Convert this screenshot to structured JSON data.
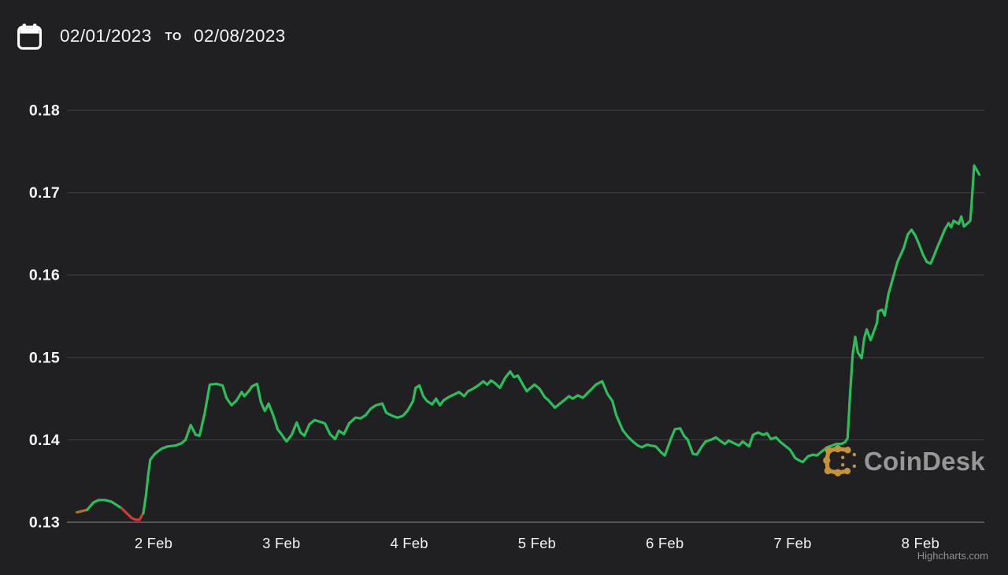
{
  "header": {
    "date_from": "02/01/2023",
    "separator": "TO",
    "date_to": "02/08/2023"
  },
  "watermark": {
    "brand": "CoinDesk",
    "icon_color": "#c4923a",
    "text_color": "#979797"
  },
  "credits": {
    "label": "Highcharts.com"
  },
  "chart_data": {
    "type": "line",
    "title": "",
    "xlabel": "",
    "ylabel": "",
    "x_axis": {
      "t_definition": "days since 2023-02-01 00:00",
      "min": 0.35,
      "max": 7.52,
      "ticks": [
        {
          "t": 1,
          "label": "2 Feb"
        },
        {
          "t": 2,
          "label": "3 Feb"
        },
        {
          "t": 3,
          "label": "4 Feb"
        },
        {
          "t": 4,
          "label": "5 Feb"
        },
        {
          "t": 5,
          "label": "6 Feb"
        },
        {
          "t": 6,
          "label": "7 Feb"
        },
        {
          "t": 7,
          "label": "8 Feb"
        }
      ]
    },
    "y_axis": {
      "min": 0.13,
      "max": 0.1815,
      "ticks": [
        0.13,
        0.14,
        0.15,
        0.16,
        0.17,
        0.18
      ],
      "tick_labels": [
        "0.13",
        "0.14",
        "0.15",
        "0.16",
        "0.17",
        "0.18"
      ]
    },
    "grid": {
      "on": true,
      "color": "#3a3a3d",
      "axis_line_color": "#56565a"
    },
    "legend": {
      "position": "none"
    },
    "series": {
      "segments": [
        {
          "color": "#b07030",
          "points": [
            [
              0.4,
              0.1312
            ],
            [
              0.45,
              0.1314
            ],
            [
              0.48,
              0.1315
            ]
          ]
        },
        {
          "color": "#2cbe5a",
          "points": [
            [
              0.48,
              0.1315
            ],
            [
              0.53,
              0.1324
            ],
            [
              0.57,
              0.1327
            ],
            [
              0.62,
              0.1327
            ],
            [
              0.67,
              0.1325
            ],
            [
              0.71,
              0.1321
            ],
            [
              0.75,
              0.1317
            ]
          ]
        },
        {
          "color": "#d23a30",
          "points": [
            [
              0.75,
              0.1317
            ],
            [
              0.79,
              0.1311
            ],
            [
              0.83,
              0.1305
            ],
            [
              0.86,
              0.1303
            ],
            [
              0.89,
              0.1303
            ],
            [
              0.92,
              0.1311
            ]
          ]
        },
        {
          "color": "#2cbe5a",
          "points": [
            [
              0.92,
              0.1311
            ],
            [
              0.94,
              0.1332
            ],
            [
              0.96,
              0.136
            ],
            [
              0.975,
              0.1376
            ],
            [
              1.01,
              0.1383
            ],
            [
              1.06,
              0.1389
            ],
            [
              1.11,
              0.1392
            ],
            [
              1.17,
              0.1393
            ],
            [
              1.22,
              0.1396
            ],
            [
              1.25,
              0.14
            ],
            [
              1.29,
              0.1418
            ],
            [
              1.33,
              0.1406
            ],
            [
              1.36,
              0.1405
            ],
            [
              1.4,
              0.1432
            ],
            [
              1.44,
              0.1467
            ],
            [
              1.49,
              0.1468
            ],
            [
              1.54,
              0.1466
            ],
            [
              1.57,
              0.1451
            ],
            [
              1.61,
              0.1442
            ],
            [
              1.65,
              0.1448
            ],
            [
              1.69,
              0.1458
            ],
            [
              1.71,
              0.1453
            ],
            [
              1.75,
              0.146
            ],
            [
              1.77,
              0.1465
            ],
            [
              1.81,
              0.1468
            ],
            [
              1.84,
              0.1446
            ],
            [
              1.87,
              0.1435
            ],
            [
              1.9,
              0.1444
            ],
            [
              1.94,
              0.1428
            ],
            [
              1.97,
              0.1413
            ],
            [
              2.0,
              0.1407
            ],
            [
              2.04,
              0.1398
            ],
            [
              2.08,
              0.1406
            ],
            [
              2.12,
              0.1421
            ],
            [
              2.15,
              0.1409
            ],
            [
              2.18,
              0.1405
            ],
            [
              2.22,
              0.1419
            ],
            [
              2.26,
              0.1424
            ],
            [
              2.3,
              0.1422
            ],
            [
              2.34,
              0.142
            ],
            [
              2.38,
              0.1407
            ],
            [
              2.42,
              0.1401
            ],
            [
              2.45,
              0.1411
            ],
            [
              2.49,
              0.1407
            ],
            [
              2.53,
              0.142
            ],
            [
              2.58,
              0.1427
            ],
            [
              2.62,
              0.1426
            ],
            [
              2.66,
              0.143
            ],
            [
              2.7,
              0.1438
            ],
            [
              2.74,
              0.1442
            ],
            [
              2.79,
              0.1444
            ],
            [
              2.82,
              0.1433
            ],
            [
              2.87,
              0.1429
            ],
            [
              2.91,
              0.1427
            ],
            [
              2.95,
              0.1429
            ],
            [
              2.99,
              0.1436
            ],
            [
              3.03,
              0.1447
            ],
            [
              3.05,
              0.1463
            ],
            [
              3.08,
              0.1466
            ],
            [
              3.11,
              0.1453
            ],
            [
              3.14,
              0.1447
            ],
            [
              3.18,
              0.1443
            ],
            [
              3.21,
              0.145
            ],
            [
              3.24,
              0.1442
            ],
            [
              3.27,
              0.1448
            ],
            [
              3.31,
              0.1452
            ],
            [
              3.35,
              0.1455
            ],
            [
              3.39,
              0.1458
            ],
            [
              3.43,
              0.1453
            ],
            [
              3.46,
              0.1459
            ],
            [
              3.5,
              0.1462
            ],
            [
              3.54,
              0.1466
            ],
            [
              3.58,
              0.1471
            ],
            [
              3.61,
              0.1467
            ],
            [
              3.64,
              0.1472
            ],
            [
              3.67,
              0.1469
            ],
            [
              3.71,
              0.1463
            ],
            [
              3.75,
              0.1475
            ],
            [
              3.79,
              0.1483
            ],
            [
              3.82,
              0.1476
            ],
            [
              3.85,
              0.1478
            ],
            [
              3.89,
              0.1467
            ],
            [
              3.92,
              0.1459
            ],
            [
              3.95,
              0.1463
            ],
            [
              3.98,
              0.1467
            ],
            [
              4.02,
              0.1462
            ],
            [
              4.06,
              0.1452
            ],
            [
              4.09,
              0.1448
            ],
            [
              4.14,
              0.1439
            ],
            [
              4.18,
              0.1444
            ],
            [
              4.22,
              0.1449
            ],
            [
              4.25,
              0.1453
            ],
            [
              4.28,
              0.145
            ],
            [
              4.32,
              0.1454
            ],
            [
              4.36,
              0.1451
            ],
            [
              4.39,
              0.1456
            ],
            [
              4.43,
              0.1462
            ],
            [
              4.46,
              0.1467
            ],
            [
              4.51,
              0.1471
            ],
            [
              4.55,
              0.1456
            ],
            [
              4.59,
              0.1447
            ],
            [
              4.62,
              0.143
            ],
            [
              4.67,
              0.1412
            ],
            [
              4.71,
              0.1404
            ],
            [
              4.75,
              0.1398
            ],
            [
              4.79,
              0.1393
            ],
            [
              4.82,
              0.1391
            ],
            [
              4.86,
              0.1394
            ],
            [
              4.89,
              0.1393
            ],
            [
              4.93,
              0.1392
            ],
            [
              4.97,
              0.1385
            ],
            [
              5.0,
              0.1381
            ],
            [
              5.05,
              0.1402
            ],
            [
              5.08,
              0.1413
            ],
            [
              5.12,
              0.1414
            ],
            [
              5.15,
              0.1405
            ],
            [
              5.18,
              0.14
            ],
            [
              5.22,
              0.1383
            ],
            [
              5.25,
              0.1382
            ],
            [
              5.29,
              0.1392
            ],
            [
              5.32,
              0.1398
            ],
            [
              5.36,
              0.14
            ],
            [
              5.4,
              0.1403
            ],
            [
              5.44,
              0.1398
            ],
            [
              5.47,
              0.1395
            ],
            [
              5.5,
              0.1399
            ],
            [
              5.54,
              0.1396
            ],
            [
              5.58,
              0.1393
            ],
            [
              5.61,
              0.1398
            ],
            [
              5.66,
              0.1392
            ],
            [
              5.69,
              0.1406
            ],
            [
              5.73,
              0.1409
            ],
            [
              5.77,
              0.1406
            ],
            [
              5.8,
              0.1408
            ],
            [
              5.83,
              0.1401
            ],
            [
              5.87,
              0.1403
            ],
            [
              5.9,
              0.1398
            ],
            [
              5.94,
              0.1393
            ],
            [
              5.98,
              0.1388
            ],
            [
              6.02,
              0.1378
            ],
            [
              6.05,
              0.1375
            ],
            [
              6.08,
              0.1373
            ],
            [
              6.12,
              0.138
            ],
            [
              6.16,
              0.1382
            ],
            [
              6.19,
              0.1381
            ],
            [
              6.23,
              0.1386
            ],
            [
              6.27,
              0.1391
            ],
            [
              6.31,
              0.1393
            ],
            [
              6.34,
              0.1395
            ],
            [
              6.38,
              0.1395
            ],
            [
              6.41,
              0.1397
            ],
            [
              6.43,
              0.1402
            ],
            [
              6.45,
              0.1456
            ],
            [
              6.47,
              0.1504
            ],
            [
              6.49,
              0.1525
            ],
            [
              6.51,
              0.1506
            ],
            [
              6.54,
              0.1499
            ],
            [
              6.56,
              0.1523
            ],
            [
              6.58,
              0.1534
            ],
            [
              6.61,
              0.1521
            ],
            [
              6.63,
              0.1529
            ],
            [
              6.66,
              0.1542
            ],
            [
              6.67,
              0.1556
            ],
            [
              6.7,
              0.1558
            ],
            [
              6.72,
              0.1551
            ],
            [
              6.75,
              0.1577
            ],
            [
              6.79,
              0.1599
            ],
            [
              6.82,
              0.1616
            ],
            [
              6.87,
              0.1633
            ],
            [
              6.9,
              0.1649
            ],
            [
              6.93,
              0.1655
            ],
            [
              6.96,
              0.1648
            ],
            [
              6.99,
              0.1637
            ],
            [
              7.02,
              0.1625
            ],
            [
              7.05,
              0.1616
            ],
            [
              7.08,
              0.1614
            ],
            [
              7.1,
              0.1621
            ],
            [
              7.13,
              0.1633
            ],
            [
              7.16,
              0.1644
            ],
            [
              7.19,
              0.1655
            ],
            [
              7.22,
              0.1663
            ],
            [
              7.24,
              0.1658
            ],
            [
              7.26,
              0.1666
            ],
            [
              7.28,
              0.1664
            ],
            [
              7.3,
              0.1662
            ],
            [
              7.32,
              0.1671
            ],
            [
              7.34,
              0.1659
            ],
            [
              7.37,
              0.1663
            ],
            [
              7.39,
              0.1666
            ],
            [
              7.4,
              0.1685
            ],
            [
              7.42,
              0.1733
            ],
            [
              7.45,
              0.1725
            ],
            [
              7.46,
              0.1722
            ]
          ]
        }
      ]
    }
  }
}
